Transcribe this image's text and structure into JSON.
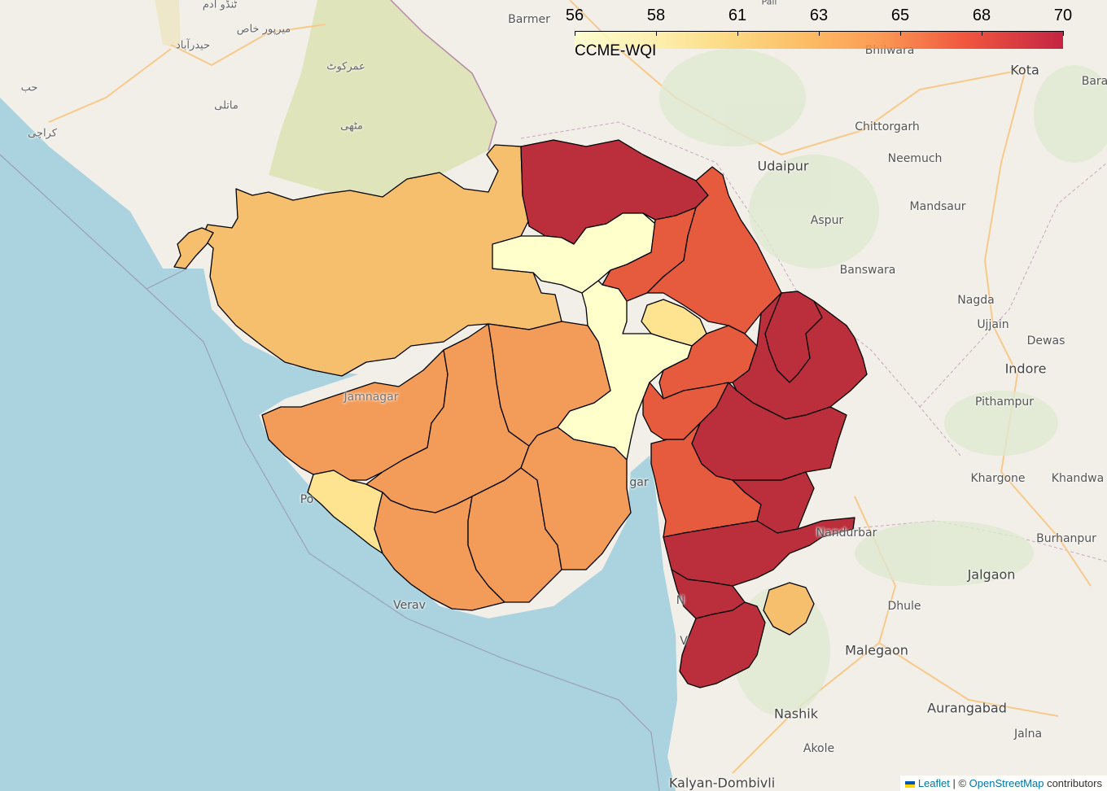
{
  "legend": {
    "title": "CCME-WQI",
    "ticks": [
      "56",
      "58",
      "61",
      "63",
      "65",
      "68",
      "70"
    ]
  },
  "colors": {
    "sea": "#aad3df",
    "land": "#f2efe9",
    "desert": "#e0e4bb",
    "class_56": "#ffffcc",
    "class_58": "#fee391",
    "class_61": "#f6bf6e",
    "class_63": "#f39c5a",
    "class_65": "#e65a3e",
    "class_70": "#bb2e3c"
  },
  "places": {
    "barmer": "Barmer",
    "bhilwara": "Bhilwara",
    "kota": "Kota",
    "bara": "Bara",
    "pali": "Pali",
    "chittorgarh": "Chittorgarh",
    "neemuch": "Neemuch",
    "udaipur": "Udaipur",
    "mandsaur": "Mandsaur",
    "aspur": "Aspur",
    "banswara": "Banswara",
    "nagda": "Nagda",
    "ujjain": "Ujjain",
    "dewas": "Dewas",
    "indore": "Indore",
    "pithampur": "Pithampur",
    "khargone": "Khargone",
    "khandwa": "Khandwa",
    "burhanpur": "Burhanpur",
    "nandurbar": "Nandurbar",
    "jalgaon": "Jalgaon",
    "dhule": "Dhule",
    "malegaon": "Malegaon",
    "nashik": "Nashik",
    "aurangabad": "Aurangabad",
    "akole": "Akole",
    "jalna": "Jalna",
    "kalyan": "Kalyan-Dombivli",
    "jamnagar": "Jamnagar",
    "porbandar": "Po",
    "veraval": "Verav",
    "bhavnagar": "gar",
    "navsari": "N",
    "valsad": "V",
    "mirpur_khas": "میرپور خاص",
    "hyderabad": "حیدرآباد",
    "tando": "ٹنڈو آدم",
    "umerkot": "عمرکوٹ",
    "matli": "ماتلی",
    "mithi": "مٹھی",
    "karachi": "کراچی",
    "hub": "حب"
  },
  "attribution": {
    "leaflet": "Leaflet",
    "separator": " | © ",
    "osm": "OpenStreetMap",
    "suffix": " contributors"
  }
}
